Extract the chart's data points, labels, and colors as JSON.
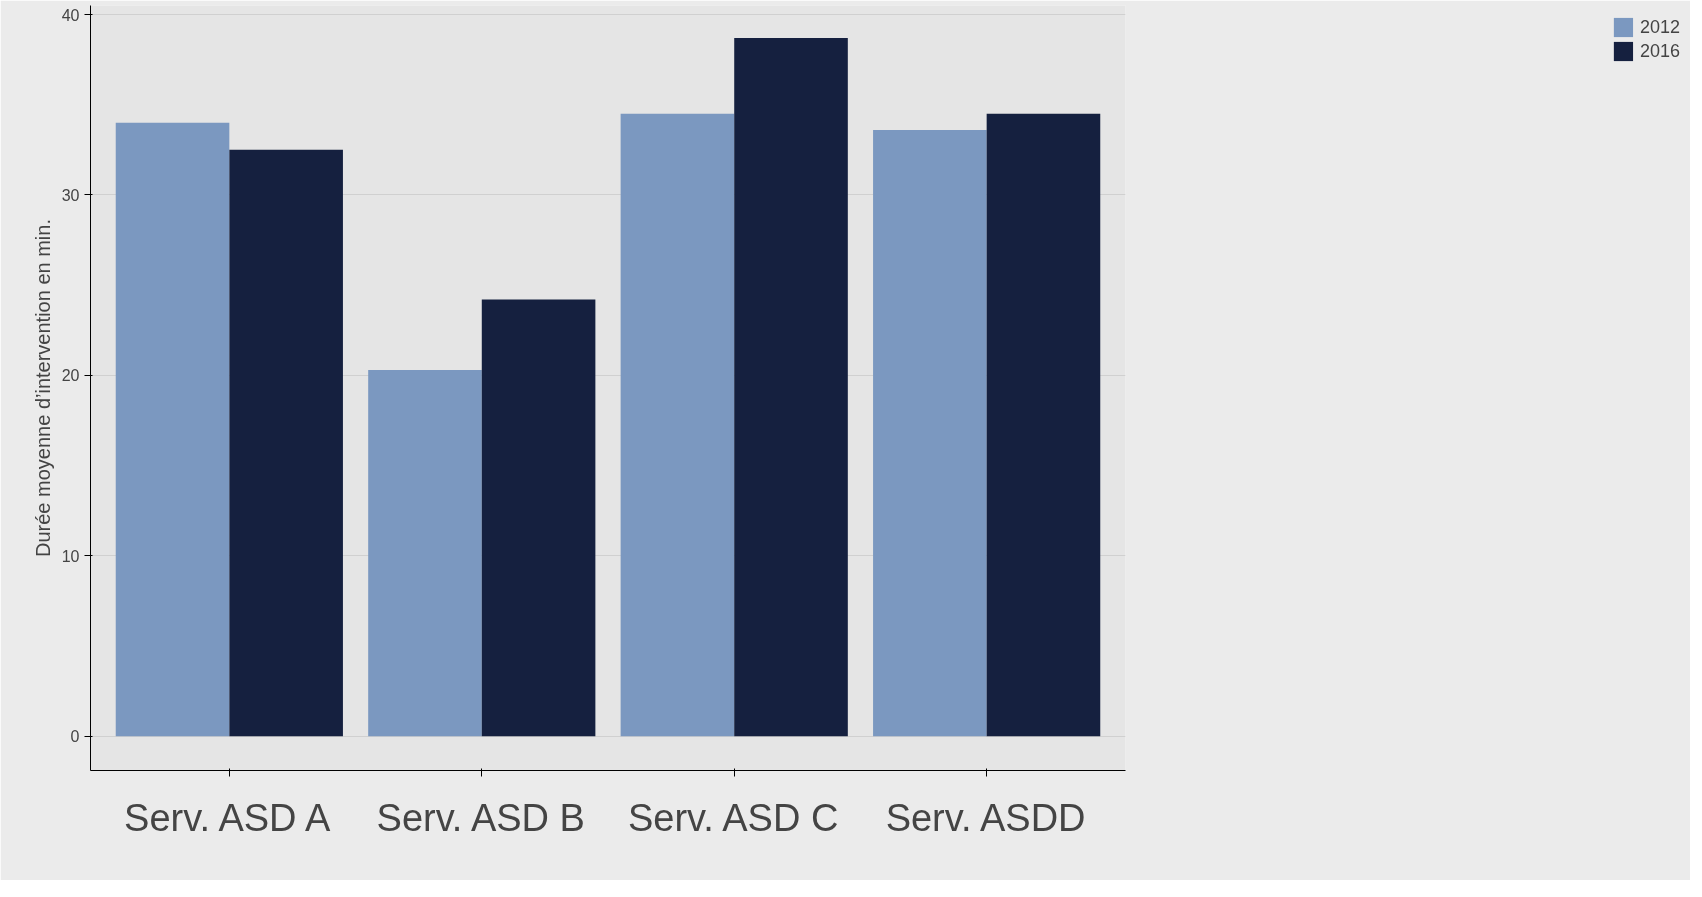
{
  "chart_data": {
    "type": "bar",
    "ylabel": "Durée moyenne d’intervention en min.",
    "categories": [
      "Serv. ASD A",
      "Serv. ASD B",
      "Serv. ASD C",
      "Serv. ASDD"
    ],
    "series": [
      {
        "name": "2012",
        "color": "#7b98c0",
        "values": [
          34.0,
          20.3,
          34.5,
          33.6
        ]
      },
      {
        "name": "2016",
        "color": "#15203f",
        "values": [
          32.5,
          24.2,
          38.7,
          34.5
        ]
      }
    ],
    "ylim": [
      -1.9,
      40.5
    ],
    "yticks": [
      0,
      10,
      20,
      30,
      40
    ],
    "grid": "y",
    "legend": "right"
  }
}
